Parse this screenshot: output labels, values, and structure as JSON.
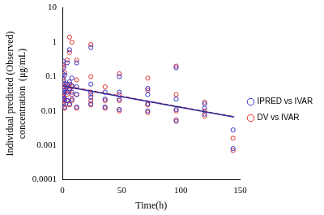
{
  "chart_data": {
    "type": "scatter",
    "x_label": "Time(h)",
    "y_label": [
      "Individual predicted (Observed)",
      "concentration  (μg/mL)"
    ],
    "xlim": [
      0,
      150
    ],
    "xticks": [
      0,
      50,
      100,
      150
    ],
    "ylim": [
      0.0001,
      10
    ],
    "yticks": [
      0.0001,
      0.001,
      0.01,
      0.1,
      1,
      10
    ],
    "log": "y",
    "grid": false,
    "legend": "right",
    "series": [
      {
        "name": "IPRED vs IVAR",
        "color": "#3535c8",
        "marker": "circle",
        "x": [
          0.5,
          0.5,
          0.5,
          0.5,
          0.5,
          1,
          1,
          1,
          1,
          1,
          2,
          2,
          2,
          2,
          2,
          4,
          4,
          4,
          4,
          6,
          6,
          6,
          6,
          8,
          8,
          8,
          8,
          12,
          12,
          12,
          12,
          24,
          24,
          24,
          24,
          24,
          36,
          36,
          36,
          48,
          48,
          48,
          48,
          72,
          72,
          72,
          72,
          96,
          96,
          96,
          96,
          120,
          120,
          120,
          144,
          144
        ],
        "values": [
          0.022,
          0.035,
          0.06,
          0.12,
          0.28,
          0.018,
          0.03,
          0.045,
          0.08,
          0.18,
          0.013,
          0.022,
          0.04,
          0.06,
          0.11,
          0.02,
          0.035,
          0.06,
          0.25,
          0.016,
          0.045,
          0.07,
          0.6,
          0.022,
          0.035,
          0.055,
          0.09,
          0.013,
          0.03,
          0.05,
          0.25,
          0.016,
          0.025,
          0.035,
          0.06,
          0.7,
          0.013,
          0.022,
          0.035,
          0.011,
          0.022,
          0.035,
          0.1,
          0.01,
          0.016,
          0.03,
          0.045,
          0.005,
          0.011,
          0.022,
          0.18,
          0.008,
          0.012,
          0.016,
          0.0028,
          0.0008
        ]
      },
      {
        "name": "DV vs IVAR",
        "color": "#e03030",
        "marker": "circle",
        "x": [
          0.5,
          0.5,
          0.5,
          0.5,
          0.5,
          1,
          1,
          1,
          1,
          1,
          2,
          2,
          2,
          2,
          2,
          4,
          4,
          4,
          4,
          6,
          6,
          6,
          6,
          6,
          8,
          8,
          8,
          8,
          12,
          12,
          12,
          12,
          24,
          24,
          24,
          24,
          24,
          36,
          36,
          36,
          48,
          48,
          48,
          48,
          72,
          72,
          72,
          72,
          96,
          96,
          96,
          96,
          120,
          120,
          120,
          144,
          144
        ],
        "values": [
          0.02,
          0.03,
          0.05,
          0.09,
          0.22,
          0.015,
          0.025,
          0.04,
          0.07,
          0.2,
          0.012,
          0.02,
          0.035,
          0.05,
          0.13,
          0.02,
          0.03,
          0.05,
          0.3,
          0.015,
          0.04,
          0.06,
          0.5,
          1.4,
          0.02,
          0.03,
          0.05,
          1.0,
          0.012,
          0.03,
          0.08,
          0.3,
          0.015,
          0.02,
          0.03,
          0.1,
          0.85,
          0.012,
          0.02,
          0.05,
          0.01,
          0.02,
          0.03,
          0.12,
          0.009,
          0.015,
          0.04,
          0.09,
          0.0055,
          0.01,
          0.03,
          0.2,
          0.007,
          0.01,
          0.018,
          0.0016,
          0.0007
        ]
      },
      {
        "type": "line",
        "color": "#2a2a9a",
        "line_style": "solid",
        "x": [
          0,
          145
        ],
        "values": [
          0.053,
          0.0066
        ]
      },
      {
        "type": "line",
        "color": "#d83030",
        "line_style": "dashed",
        "x": [
          0,
          145
        ],
        "values": [
          0.055,
          0.0067
        ]
      }
    ]
  }
}
